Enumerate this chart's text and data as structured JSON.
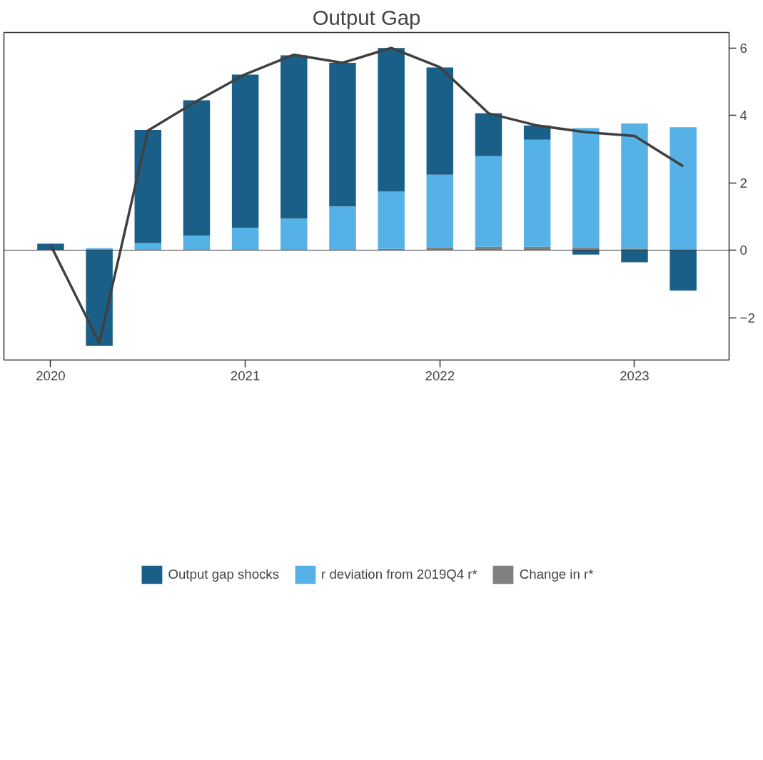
{
  "chart_data": {
    "type": "bar",
    "title": "Output Gap",
    "stacked": true,
    "x": [
      2020.0,
      2020.25,
      2020.5,
      2020.75,
      2021.0,
      2021.25,
      2021.5,
      2021.75,
      2022.0,
      2022.25,
      2022.5,
      2022.75,
      2023.0,
      2023.25
    ],
    "series": [
      {
        "name": "Change in r*",
        "color": "#808080",
        "values": [
          0,
          0,
          0,
          0,
          0,
          0,
          0.03,
          0.04,
          0.08,
          0.1,
          0.1,
          0.08,
          0.05,
          0
        ]
      },
      {
        "name": "r deviation from 2019Q4 r*",
        "color": "#56b2e6",
        "values": [
          0,
          0.06,
          0.21,
          0.43,
          0.67,
          0.94,
          1.27,
          1.7,
          2.16,
          2.69,
          3.18,
          3.54,
          3.71,
          3.65
        ]
      },
      {
        "name": "Output gap shocks",
        "color": "#1a5f88",
        "values": [
          0.19,
          -2.84,
          3.36,
          4.02,
          4.54,
          4.84,
          4.26,
          4.26,
          3.18,
          1.27,
          0.42,
          -0.13,
          -0.36,
          -1.2
        ]
      },
      {
        "type": "line",
        "color": "#404040",
        "values": [
          0.15,
          -2.75,
          3.55,
          4.42,
          5.22,
          5.8,
          5.56,
          6.0,
          5.43,
          4.06,
          3.7,
          3.5,
          3.39,
          2.49
        ]
      }
    ],
    "xlim": [
      2019.76,
      2023.486
    ],
    "xticks": [
      2020,
      2021,
      2022,
      2023
    ],
    "ylim": [
      -3.26,
      6.46
    ],
    "yticks": [
      {
        "value": -2,
        "label": "−2"
      },
      0,
      2,
      4,
      6
    ],
    "ref_lines": [
      {
        "axis": "y",
        "value": 0
      }
    ],
    "grid": false,
    "legend": "bottom"
  }
}
